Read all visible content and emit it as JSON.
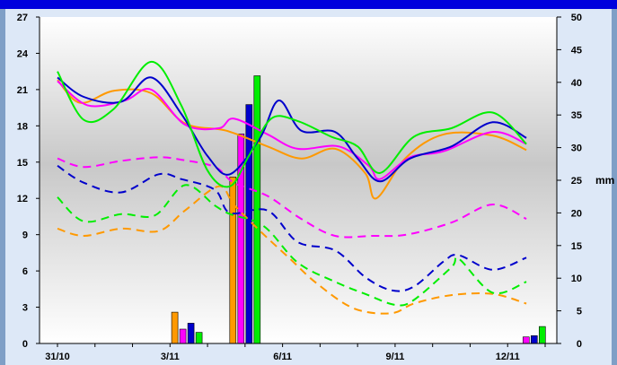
{
  "chart_data": {
    "type": "line",
    "title": "",
    "y_left": {
      "min": 0,
      "max": 27,
      "ticks": [
        "0",
        "3",
        "6",
        "9",
        "12",
        "15",
        "18",
        "21",
        "24",
        "27"
      ]
    },
    "y_right": {
      "min": 0,
      "max": 50,
      "unit_label": "mm",
      "unit_at": "25",
      "ticks": [
        "0",
        "5",
        "10",
        "15",
        "20",
        "25",
        "30",
        "35",
        "40",
        "45",
        "50"
      ]
    },
    "x": {
      "min": 0,
      "max": 13,
      "ticks": [
        {
          "pos": 0,
          "label": "31/10"
        },
        {
          "pos": 3,
          "label": "3/11"
        },
        {
          "pos": 6,
          "label": "6/11"
        },
        {
          "pos": 9,
          "label": "9/11"
        },
        {
          "pos": 12,
          "label": "12/11"
        }
      ]
    },
    "colors": {
      "orange": "#ff9900",
      "magenta": "#ff00ff",
      "blue": "#0000cc",
      "green": "#00ee00",
      "header": "#0000dd",
      "frame": "#dde8f7",
      "border": "#7f9fc6"
    },
    "series_max": [
      {
        "color": "orange",
        "points": [
          [
            0,
            21.8
          ],
          [
            0.6,
            19.9
          ],
          [
            1.5,
            20.9
          ],
          [
            2.5,
            20.7
          ],
          [
            3.4,
            18.2
          ],
          [
            4.5,
            17.6
          ],
          [
            5.6,
            16.3
          ],
          [
            6.5,
            15.3
          ],
          [
            7.4,
            16.1
          ],
          [
            8.2,
            14.1
          ],
          [
            8.5,
            12.0
          ],
          [
            9.3,
            15.4
          ],
          [
            10.3,
            17.3
          ],
          [
            11.6,
            17.2
          ],
          [
            12.5,
            16.0
          ]
        ]
      },
      {
        "color": "magenta",
        "points": [
          [
            0,
            21.7
          ],
          [
            0.8,
            19.7
          ],
          [
            1.8,
            20.1
          ],
          [
            2.5,
            21.0
          ],
          [
            3.4,
            18.1
          ],
          [
            4.3,
            17.8
          ],
          [
            4.7,
            18.6
          ],
          [
            5.6,
            17.3
          ],
          [
            6.4,
            16.1
          ],
          [
            7.5,
            16.3
          ],
          [
            8.3,
            14.7
          ],
          [
            8.6,
            13.6
          ],
          [
            9.4,
            15.4
          ],
          [
            10.3,
            15.9
          ],
          [
            11.6,
            17.5
          ],
          [
            12.5,
            16.5
          ]
        ]
      },
      {
        "color": "blue",
        "points": [
          [
            0,
            22.0
          ],
          [
            0.7,
            20.4
          ],
          [
            1.7,
            20.0
          ],
          [
            2.5,
            22.0
          ],
          [
            3.3,
            19.0
          ],
          [
            4.0,
            15.5
          ],
          [
            4.6,
            14.0
          ],
          [
            5.4,
            17.0
          ],
          [
            5.9,
            20.1
          ],
          [
            6.5,
            17.6
          ],
          [
            7.4,
            17.5
          ],
          [
            8.0,
            15.3
          ],
          [
            8.6,
            13.4
          ],
          [
            9.4,
            15.3
          ],
          [
            10.5,
            16.3
          ],
          [
            11.6,
            18.3
          ],
          [
            12.5,
            17.0
          ]
        ]
      },
      {
        "color": "green",
        "points": [
          [
            0,
            22.5
          ],
          [
            0.7,
            18.5
          ],
          [
            1.5,
            19.4
          ],
          [
            2.5,
            23.3
          ],
          [
            3.3,
            19.7
          ],
          [
            4.0,
            14.3
          ],
          [
            4.6,
            13.0
          ],
          [
            5.1,
            15.5
          ],
          [
            5.7,
            18.6
          ],
          [
            6.4,
            18.4
          ],
          [
            7.3,
            17.1
          ],
          [
            8.0,
            16.3
          ],
          [
            8.6,
            14.1
          ],
          [
            9.5,
            17.1
          ],
          [
            10.5,
            17.8
          ],
          [
            11.6,
            19.1
          ],
          [
            12.5,
            16.5
          ]
        ]
      }
    ],
    "series_min": [
      {
        "color": "orange",
        "points": [
          [
            0,
            9.5
          ],
          [
            0.7,
            8.9
          ],
          [
            1.7,
            9.5
          ],
          [
            2.7,
            9.3
          ],
          [
            3.4,
            11.0
          ],
          [
            4.3,
            13.0
          ],
          [
            4.7,
            11.5
          ],
          [
            5.4,
            9.3
          ],
          [
            6.2,
            7.0
          ],
          [
            6.9,
            5.0
          ],
          [
            7.9,
            2.9
          ],
          [
            8.9,
            2.5
          ],
          [
            9.5,
            3.3
          ],
          [
            10.5,
            4.0
          ],
          [
            11.6,
            4.1
          ],
          [
            12.5,
            3.3
          ]
        ]
      },
      {
        "color": "magenta",
        "points": [
          [
            0,
            15.3
          ],
          [
            0.7,
            14.6
          ],
          [
            1.7,
            15.1
          ],
          [
            2.7,
            15.4
          ],
          [
            3.3,
            15.2
          ],
          [
            4.2,
            14.6
          ],
          [
            4.7,
            13.3
          ],
          [
            5.6,
            12.2
          ],
          [
            6.5,
            10.3
          ],
          [
            7.4,
            8.9
          ],
          [
            8.4,
            8.9
          ],
          [
            9.3,
            9.0
          ],
          [
            10.5,
            10.0
          ],
          [
            11.6,
            11.5
          ],
          [
            12.5,
            10.3
          ]
        ]
      },
      {
        "color": "blue",
        "points": [
          [
            0,
            14.7
          ],
          [
            0.7,
            13.3
          ],
          [
            1.7,
            12.5
          ],
          [
            2.7,
            14.0
          ],
          [
            3.3,
            13.6
          ],
          [
            4.2,
            12.7
          ],
          [
            4.6,
            10.8
          ],
          [
            5.6,
            11.0
          ],
          [
            6.4,
            8.4
          ],
          [
            7.4,
            7.7
          ],
          [
            8.2,
            5.5
          ],
          [
            8.9,
            4.4
          ],
          [
            9.5,
            4.7
          ],
          [
            10.3,
            6.8
          ],
          [
            10.7,
            7.3
          ],
          [
            11.6,
            6.1
          ],
          [
            12.5,
            7.1
          ]
        ]
      },
      {
        "color": "green",
        "points": [
          [
            0,
            12.1
          ],
          [
            0.7,
            10.1
          ],
          [
            1.7,
            10.7
          ],
          [
            2.6,
            10.6
          ],
          [
            3.4,
            13.1
          ],
          [
            4.2,
            11.4
          ],
          [
            4.6,
            10.7
          ],
          [
            5.5,
            9.7
          ],
          [
            6.4,
            6.7
          ],
          [
            7.4,
            5.1
          ],
          [
            8.2,
            4.1
          ],
          [
            9.0,
            3.2
          ],
          [
            9.5,
            3.6
          ],
          [
            10.5,
            6.3
          ],
          [
            10.7,
            7.0
          ],
          [
            11.6,
            4.2
          ],
          [
            12.5,
            5.1
          ]
        ]
      }
    ],
    "precipitation_mm": [
      {
        "day_pos": 3.45,
        "values": {
          "orange": 4.8,
          "magenta": 2.2,
          "blue": 3.1,
          "green": 1.7
        }
      },
      {
        "day_pos": 5.0,
        "values": {
          "orange": 25.5,
          "magenta": 32.1,
          "blue": 36.6,
          "green": 41.0
        }
      },
      {
        "day_pos": 12.6,
        "values": {
          "orange": 0,
          "magenta": 1.0,
          "blue": 1.2,
          "green": 2.6
        }
      }
    ],
    "grid": false
  }
}
